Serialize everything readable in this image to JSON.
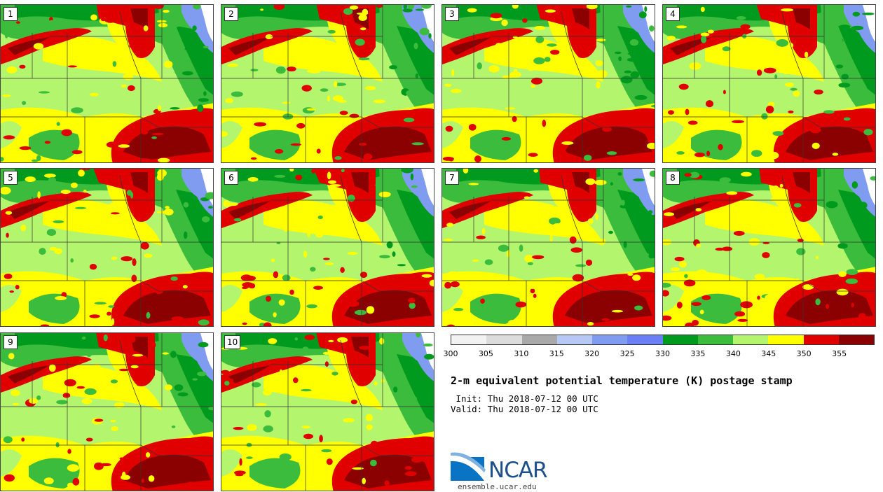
{
  "panels": [
    {
      "label": "1"
    },
    {
      "label": "2"
    },
    {
      "label": "3"
    },
    {
      "label": "4"
    },
    {
      "label": "5"
    },
    {
      "label": "6"
    },
    {
      "label": "7"
    },
    {
      "label": "8"
    },
    {
      "label": "9"
    },
    {
      "label": "10"
    }
  ],
  "colorbar": {
    "colors": [
      "#f2f2f2",
      "#dcdcdc",
      "#a9a9a9",
      "#b8c8f5",
      "#7f9cf0",
      "#6a7ff5",
      "#009a1e",
      "#3cbc3c",
      "#b4f56e",
      "#ffff00",
      "#e00000",
      "#8b0000"
    ],
    "ticks": [
      "300",
      "305",
      "310",
      "315",
      "320",
      "325",
      "330",
      "335",
      "340",
      "345",
      "350",
      "355"
    ]
  },
  "title": "2-m equivalent potential temperature (K) postage stamp",
  "init": " Init: Thu 2018-07-12 00 UTC",
  "valid": "Valid: Thu 2018-07-12 00 UTC",
  "logo": {
    "text": "NCAR",
    "url": "ensemble.ucar.edu"
  },
  "palette": {
    "light_green": "#b4f56e",
    "mid_green": "#3cbc3c",
    "dark_green": "#009a1e",
    "yellow": "#ffff00",
    "red": "#e00000",
    "dark_red": "#8b0000",
    "blue": "#7f9cf0",
    "light_blue": "#b8c8f5",
    "white": "#ffffff"
  }
}
